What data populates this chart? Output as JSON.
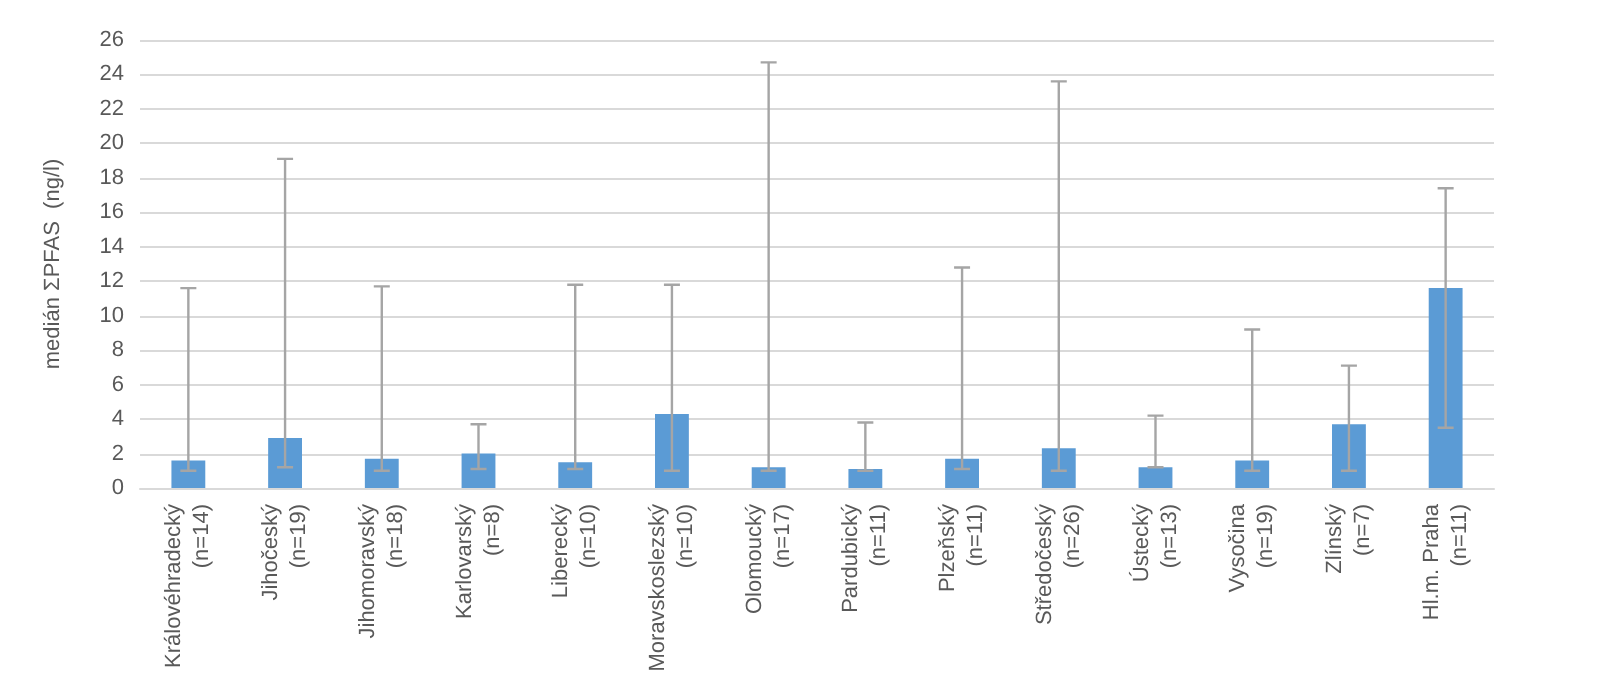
{
  "chart_data": {
    "type": "bar",
    "ylabel": "medián ΣPFAS  (ng/l)",
    "categories": [
      "Královéhradecký\n(n=14)",
      "Jihočeský\n(n=19)",
      "Jihomoravský\n(n=18)",
      "Karlovarský\n(n=8)",
      "Liberecký\n(n=10)",
      "Moravskoslezský\n(n=10)",
      "Olomoucký\n(n=17)",
      "Pardubický\n(n=11)",
      "Plzeňský\n(n=11)",
      "Středočeský\n(n=26)",
      "Ústecký\n(n=13)",
      "Vysočina\n(n=19)",
      "Zlínský\n(n=7)",
      "Hl.m. Praha\n(n=11)"
    ],
    "values": [
      1.6,
      2.9,
      1.7,
      2.0,
      1.5,
      4.3,
      1.2,
      1.1,
      1.7,
      2.3,
      1.2,
      1.6,
      3.7,
      11.6
    ],
    "errors": [
      [
        1.0,
        11.6
      ],
      [
        1.2,
        19.1
      ],
      [
        1.0,
        11.7
      ],
      [
        1.1,
        3.7
      ],
      [
        1.1,
        11.8
      ],
      [
        1.0,
        11.8
      ],
      [
        1.0,
        24.7
      ],
      [
        1.0,
        3.8
      ],
      [
        1.1,
        12.8
      ],
      [
        1.0,
        23.6
      ],
      [
        1.2,
        4.2
      ],
      [
        1.0,
        9.2
      ],
      [
        1.0,
        7.1
      ],
      [
        3.5,
        17.4
      ]
    ],
    "color": "#5b9bd5",
    "ylim": [
      0,
      26
    ],
    "yticks": [
      0,
      2,
      4,
      6,
      8,
      10,
      12,
      14,
      16,
      18,
      20,
      22,
      24,
      26
    ],
    "grid": "y"
  }
}
